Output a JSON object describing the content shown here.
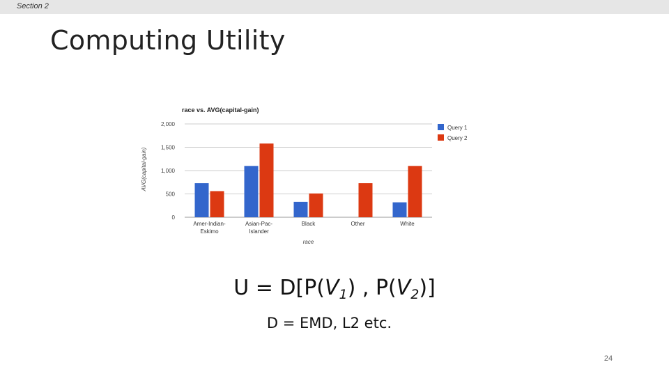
{
  "header": {
    "section_label": "Section 2"
  },
  "slide": {
    "title": "Computing Utility",
    "formula": {
      "u": "U",
      "eq": " = D[P(",
      "v1": "V",
      "s1": "1",
      "mid": ") , P(",
      "v2": "V",
      "s2": "2",
      "end": ")]"
    },
    "subformula": "D = EMD, L2 etc.",
    "page_number": "24"
  },
  "chart_data": {
    "type": "bar",
    "title": "race vs. AVG(capital-gain)",
    "xlabel": "race",
    "ylabel": "AVG(capital-gain)",
    "ylim": [
      0,
      2000
    ],
    "yticks": [
      0,
      500,
      1000,
      1500,
      2000
    ],
    "ytick_labels": [
      "0",
      "500",
      "1,000",
      "1,500",
      "2,000"
    ],
    "categories": [
      "Amer-Indian-Eskimo",
      "Asian-Pac-Islander",
      "Black",
      "Other",
      "White"
    ],
    "category_labels": [
      [
        "Amer-Indian-",
        "Eskimo"
      ],
      [
        "Asian-Pac-",
        "Islander"
      ],
      [
        "Black"
      ],
      [
        "Other"
      ],
      [
        "White"
      ]
    ],
    "series": [
      {
        "name": "Query 1",
        "color": "#3366cc",
        "values": [
          730,
          1100,
          330,
          0,
          320
        ]
      },
      {
        "name": "Query 2",
        "color": "#dc3912",
        "values": [
          560,
          1580,
          510,
          730,
          1100
        ]
      }
    ],
    "grid": true,
    "legend_position": "right"
  }
}
